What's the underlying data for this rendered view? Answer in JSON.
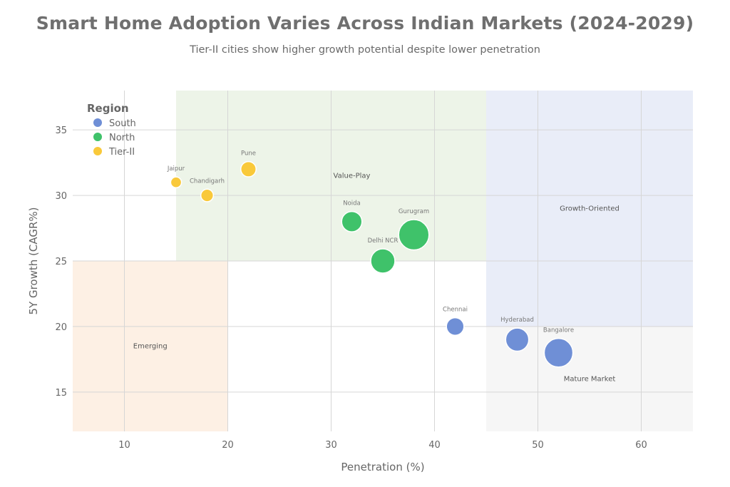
{
  "chart_data": {
    "type": "scatter",
    "title": "Smart Home Adoption Varies Across Indian Markets (2024-2029)",
    "subtitle": "Tier-II cities show higher growth potential despite lower penetration",
    "xlabel": "Penetration (%)",
    "ylabel": "5Y Growth (CAGR%)",
    "xlim": [
      5,
      65
    ],
    "ylim": [
      12,
      38
    ],
    "xticks": [
      10,
      20,
      30,
      40,
      50,
      60
    ],
    "yticks": [
      15,
      20,
      25,
      30,
      35
    ],
    "grid": true,
    "legend": {
      "title": "Region",
      "placement": "top-left",
      "entries": [
        {
          "name": "South",
          "color": "#6f8fd6"
        },
        {
          "name": "North",
          "color": "#3fc26a"
        },
        {
          "name": "Tier-II",
          "color": "#f9c93a"
        }
      ]
    },
    "zones": [
      {
        "label": "Value-Play",
        "x": [
          15,
          45
        ],
        "y": [
          25,
          38
        ],
        "color": "#edf4e8",
        "label_at": [
          32,
          31.5
        ]
      },
      {
        "label": "Growth-Oriented",
        "x": [
          45,
          65
        ],
        "y": [
          20,
          38
        ],
        "color": "#e9edf8",
        "label_at": [
          55,
          29
        ]
      },
      {
        "label": "Emerging",
        "x": [
          5,
          20
        ],
        "y": [
          12,
          25
        ],
        "color": "#fdf0e4",
        "label_at": [
          12.5,
          18.5
        ]
      },
      {
        "label": "Mature Market",
        "x": [
          45,
          65
        ],
        "y": [
          12,
          20
        ],
        "color": "#f6f6f6",
        "label_at": [
          55,
          16
        ]
      }
    ],
    "series": [
      {
        "name": "South",
        "color": "#6f8fd6",
        "points": [
          {
            "label": "Chennai",
            "x": 42,
            "y": 20,
            "size": 2
          },
          {
            "label": "Hyderabad",
            "x": 48,
            "y": 19,
            "size": 3
          },
          {
            "label": "Bangalore",
            "x": 52,
            "y": 18,
            "size": 4
          }
        ]
      },
      {
        "name": "North",
        "color": "#3fc26a",
        "points": [
          {
            "label": "Noida",
            "x": 32,
            "y": 28,
            "size": 2.5
          },
          {
            "label": "Delhi NCR",
            "x": 35,
            "y": 25,
            "size": 3.2
          },
          {
            "label": "Gurugram",
            "x": 38,
            "y": 27,
            "size": 4.3
          }
        ]
      },
      {
        "name": "Tier-II",
        "color": "#f9c93a",
        "points": [
          {
            "label": "Jaipur",
            "x": 15,
            "y": 31,
            "size": 0.8
          },
          {
            "label": "Chandigarh",
            "x": 18,
            "y": 30,
            "size": 1.1
          },
          {
            "label": "Pune",
            "x": 22,
            "y": 32,
            "size": 1.6
          }
        ]
      }
    ]
  }
}
